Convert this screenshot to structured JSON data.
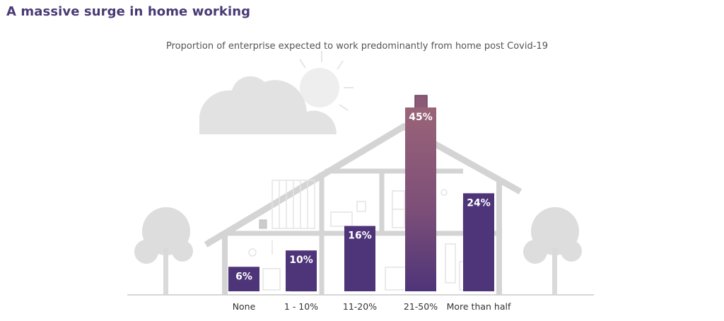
{
  "chart_data": {
    "type": "bar",
    "title": "A massive surge in home working",
    "subtitle": "Proportion of enterprise expected to work predominantly from home post Covid-19",
    "categories": [
      "None",
      "1 - 10%",
      "11-20%",
      "21-50%",
      "More than half"
    ],
    "values": [
      6,
      10,
      16,
      45,
      24
    ],
    "value_labels": [
      "6%",
      "10%",
      "16%",
      "45%",
      "24%"
    ],
    "ylim": [
      0,
      45
    ],
    "xlabel": "",
    "ylabel": "",
    "colors": {
      "bar_default": "#4e3479",
      "bar_highlight": "#8a5a77",
      "illustration": "#dcdcdc",
      "illustration_light": "#eeeeee"
    }
  }
}
